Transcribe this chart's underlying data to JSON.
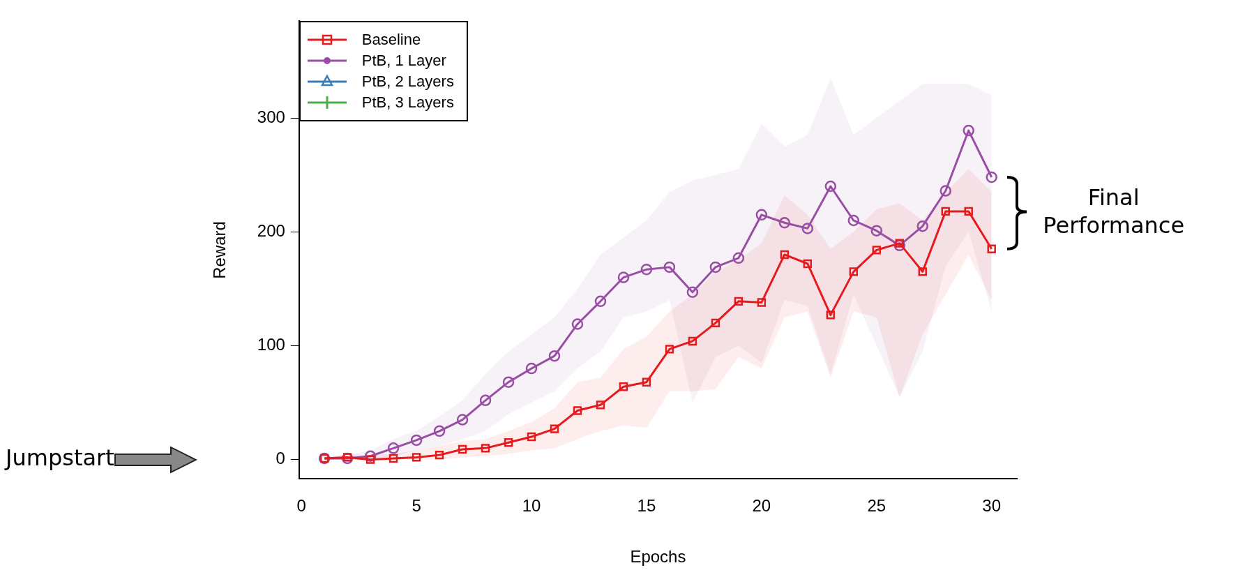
{
  "chart_data": {
    "type": "line",
    "xlabel": "Epochs",
    "ylabel": "Reward",
    "x": [
      1,
      2,
      3,
      4,
      5,
      6,
      7,
      8,
      9,
      10,
      11,
      12,
      13,
      14,
      15,
      16,
      17,
      18,
      19,
      20,
      21,
      22,
      23,
      24,
      25,
      26,
      27,
      28,
      29,
      30
    ],
    "xlim": [
      -0.1,
      31.1
    ],
    "xticks": [
      0,
      5,
      10,
      15,
      20,
      25,
      30
    ],
    "ylim": [
      -17,
      385
    ],
    "yticks": [
      0,
      100,
      200,
      300
    ],
    "legend": "top left",
    "grid": false,
    "line_style": "solid",
    "series": [
      {
        "name": "Baseline",
        "color": "#e41a1c",
        "marker": "square",
        "values": [
          1,
          2,
          0,
          1,
          2,
          4,
          9,
          10,
          15,
          20,
          27,
          43,
          48,
          64,
          68,
          97,
          104,
          120,
          139,
          138,
          180,
          172,
          127,
          165,
          184,
          190,
          165,
          218,
          218,
          185
        ],
        "lower": [
          0,
          0,
          0,
          0,
          0,
          0,
          2,
          3,
          5,
          8,
          10,
          18,
          25,
          30,
          28,
          60,
          60,
          62,
          90,
          80,
          125,
          130,
          72,
          130,
          125,
          55,
          110,
          145,
          180,
          140
        ],
        "upper": [
          2,
          4,
          4,
          5,
          8,
          12,
          16,
          18,
          25,
          33,
          45,
          68,
          72,
          97,
          108,
          130,
          145,
          165,
          175,
          190,
          232,
          215,
          185,
          200,
          220,
          225,
          210,
          235,
          255,
          235
        ]
      },
      {
        "name": "PtB, 1 Layer",
        "color": "#984ea3",
        "marker": "circle",
        "values": [
          1,
          1,
          3,
          10,
          17,
          25,
          35,
          52,
          68,
          80,
          91,
          119,
          139,
          160,
          167,
          169,
          147,
          169,
          177,
          215,
          208,
          203,
          240,
          210,
          201,
          188,
          205,
          236,
          289,
          248
        ],
        "lower": [
          0,
          0,
          0,
          3,
          8,
          12,
          18,
          25,
          40,
          50,
          60,
          80,
          95,
          125,
          130,
          140,
          50,
          90,
          100,
          85,
          140,
          135,
          75,
          145,
          100,
          55,
          95,
          170,
          200,
          130
        ],
        "upper": [
          3,
          4,
          8,
          18,
          25,
          38,
          52,
          75,
          95,
          110,
          125,
          150,
          180,
          195,
          210,
          235,
          245,
          250,
          255,
          295,
          275,
          285,
          335,
          285,
          300,
          315,
          330,
          330,
          330,
          320
        ]
      },
      {
        "name": "PtB, 2 Layers",
        "color": "#377eb8",
        "marker": "triangle",
        "values": [
          null,
          null,
          null,
          null,
          null,
          null,
          null,
          null,
          null,
          null,
          null,
          null,
          null,
          null,
          null,
          null,
          null,
          null,
          null,
          null,
          null,
          null,
          null,
          null,
          null,
          null,
          null,
          null,
          null,
          null
        ]
      },
      {
        "name": "PtB, 3 Layers",
        "color": "#4daf4a",
        "marker": "cross",
        "values": [
          null,
          null,
          null,
          null,
          null,
          null,
          null,
          null,
          null,
          null,
          null,
          null,
          null,
          null,
          null,
          null,
          null,
          null,
          null,
          null,
          null,
          null,
          null,
          null,
          null,
          null,
          null,
          null,
          null,
          null
        ]
      }
    ],
    "annotations": [
      "Jumpstart",
      "Final Performance"
    ]
  }
}
